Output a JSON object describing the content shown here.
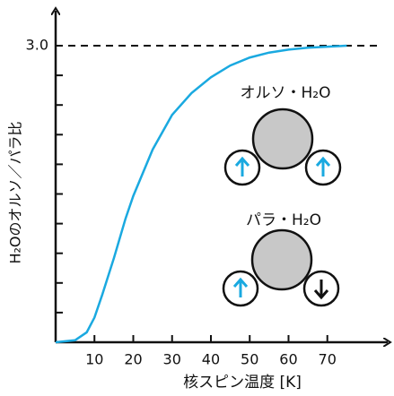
{
  "chart_data": {
    "type": "line",
    "x_label": "核スピン温度 [K]",
    "y_label": "H₂Oのオルソ／パラ比",
    "x": [
      0,
      5,
      8,
      10,
      12,
      15,
      18,
      20,
      25,
      30,
      35,
      40,
      45,
      50,
      55,
      60,
      65,
      70,
      75
    ],
    "series": [
      {
        "color": "#1aa9e0",
        "values": [
          0,
          0.02,
          0.1,
          0.25,
          0.48,
          0.85,
          1.25,
          1.48,
          1.95,
          2.3,
          2.52,
          2.68,
          2.8,
          2.88,
          2.93,
          2.96,
          2.98,
          2.99,
          3.0
        ]
      }
    ],
    "xlim": [
      0,
      77
    ],
    "ylim": [
      0,
      3
    ],
    "xticks": [
      10,
      20,
      30,
      40,
      50,
      60,
      70
    ],
    "yticks": [
      {
        "value": 3,
        "label": "3.0"
      }
    ],
    "yminorticks": [
      0.3,
      0.6,
      0.9,
      1.2,
      1.5,
      1.8,
      2.1,
      2.4,
      2.7
    ],
    "reference_line": 3,
    "annotations": [
      "オルソ・H₂O",
      "パラ・H₂O"
    ]
  }
}
